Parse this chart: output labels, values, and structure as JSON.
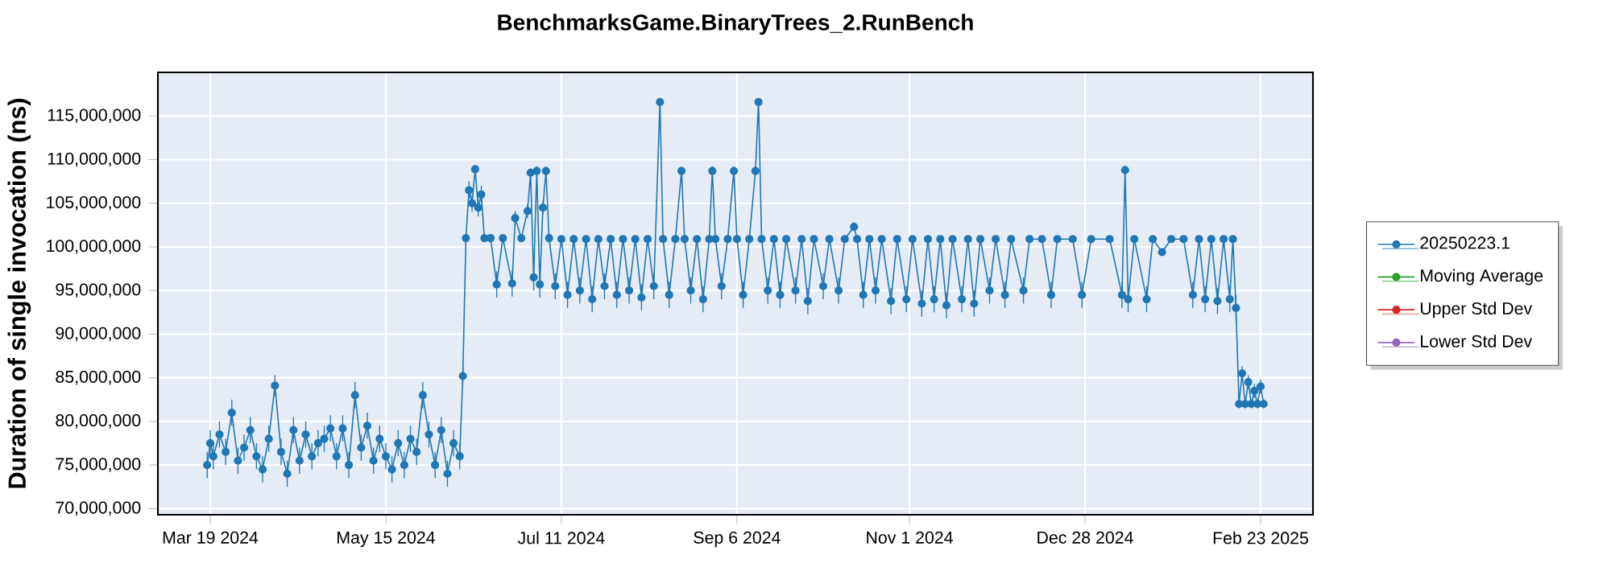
{
  "chart_data": {
    "type": "line",
    "title": "BenchmarksGame.BinaryTrees_2.RunBench",
    "ylabel": "Duration of single invocation (ns)",
    "x": [
      "2024-03-18",
      "2024-03-19",
      "2024-03-20",
      "2024-03-22",
      "2024-03-24",
      "2024-03-26",
      "2024-03-28",
      "2024-03-30",
      "2024-04-01",
      "2024-04-03",
      "2024-04-05",
      "2024-04-07",
      "2024-04-09",
      "2024-04-11",
      "2024-04-13",
      "2024-04-15",
      "2024-04-17",
      "2024-04-19",
      "2024-04-21",
      "2024-04-23",
      "2024-04-25",
      "2024-04-27",
      "2024-04-29",
      "2024-05-01",
      "2024-05-03",
      "2024-05-05",
      "2024-05-07",
      "2024-05-09",
      "2024-05-11",
      "2024-05-13",
      "2024-05-15",
      "2024-05-17",
      "2024-05-19",
      "2024-05-21",
      "2024-05-23",
      "2024-05-25",
      "2024-05-27",
      "2024-05-29",
      "2024-05-31",
      "2024-06-02",
      "2024-06-04",
      "2024-06-06",
      "2024-06-08",
      "2024-06-09",
      "2024-06-10",
      "2024-06-11",
      "2024-06-12",
      "2024-06-13",
      "2024-06-14",
      "2024-06-15",
      "2024-06-16",
      "2024-06-18",
      "2024-06-20",
      "2024-06-22",
      "2024-06-25",
      "2024-06-26",
      "2024-06-28",
      "2024-06-30",
      "2024-07-01",
      "2024-07-02",
      "2024-07-03",
      "2024-07-04",
      "2024-07-05",
      "2024-07-06",
      "2024-07-07",
      "2024-07-09",
      "2024-07-11",
      "2024-07-13",
      "2024-07-15",
      "2024-07-17",
      "2024-07-19",
      "2024-07-21",
      "2024-07-23",
      "2024-07-25",
      "2024-07-27",
      "2024-07-29",
      "2024-07-31",
      "2024-08-02",
      "2024-08-04",
      "2024-08-06",
      "2024-08-08",
      "2024-08-10",
      "2024-08-12",
      "2024-08-13",
      "2024-08-15",
      "2024-08-17",
      "2024-08-19",
      "2024-08-20",
      "2024-08-22",
      "2024-08-24",
      "2024-08-26",
      "2024-08-28",
      "2024-08-29",
      "2024-08-30",
      "2024-09-01",
      "2024-09-03",
      "2024-09-05",
      "2024-09-06",
      "2024-09-08",
      "2024-09-10",
      "2024-09-12",
      "2024-09-13",
      "2024-09-14",
      "2024-09-16",
      "2024-09-18",
      "2024-09-20",
      "2024-09-22",
      "2024-09-25",
      "2024-09-27",
      "2024-09-29",
      "2024-10-01",
      "2024-10-04",
      "2024-10-06",
      "2024-10-09",
      "2024-10-11",
      "2024-10-14",
      "2024-10-15",
      "2024-10-17",
      "2024-10-19",
      "2024-10-21",
      "2024-10-23",
      "2024-10-26",
      "2024-10-28",
      "2024-10-31",
      "2024-11-02",
      "2024-11-05",
      "2024-11-07",
      "2024-11-09",
      "2024-11-11",
      "2024-11-13",
      "2024-11-15",
      "2024-11-18",
      "2024-11-20",
      "2024-11-22",
      "2024-11-24",
      "2024-11-27",
      "2024-11-29",
      "2024-12-02",
      "2024-12-04",
      "2024-12-08",
      "2024-12-10",
      "2024-12-14",
      "2024-12-17",
      "2024-12-19",
      "2024-12-24",
      "2024-12-27",
      "2024-12-30",
      "2025-01-05",
      "2025-01-09",
      "2025-01-10",
      "2025-01-11",
      "2025-01-13",
      "2025-01-17",
      "2025-01-19",
      "2025-01-22",
      "2025-01-25",
      "2025-01-29",
      "2025-02-01",
      "2025-02-03",
      "2025-02-05",
      "2025-02-07",
      "2025-02-09",
      "2025-02-11",
      "2025-02-13",
      "2025-02-14",
      "2025-02-15",
      "2025-02-16",
      "2025-02-17",
      "2025-02-18",
      "2025-02-19",
      "2025-02-20",
      "2025-02-21",
      "2025-02-22",
      "2025-02-23",
      "2025-02-24"
    ],
    "series": [
      {
        "name": "20250223.1",
        "color": "#1f77b4",
        "values": [
          75000000,
          77500000,
          76000000,
          78500000,
          76500000,
          81000000,
          75500000,
          77000000,
          79000000,
          76000000,
          74500000,
          78000000,
          84100000,
          76500000,
          74000000,
          79000000,
          75500000,
          78500000,
          76000000,
          77500000,
          78000000,
          79200000,
          76000000,
          79200000,
          75000000,
          83000000,
          77000000,
          79500000,
          75500000,
          78000000,
          76000000,
          74500000,
          77500000,
          75000000,
          78000000,
          76500000,
          83000000,
          78500000,
          75000000,
          79000000,
          74000000,
          77500000,
          76000000,
          85200000,
          101000000,
          106500000,
          105000000,
          108900000,
          104500000,
          106000000,
          101000000,
          101000000,
          95700000,
          101000000,
          95800000,
          103300000,
          101000000,
          104100000,
          108500000,
          96500000,
          108700000,
          95700000,
          104500000,
          108700000,
          101000000,
          95500000,
          100900000,
          94500000,
          100900000,
          95000000,
          100900000,
          94000000,
          100900000,
          95500000,
          100900000,
          94500000,
          100900000,
          95000000,
          100900000,
          94200000,
          100900000,
          95500000,
          116600000,
          100900000,
          94500000,
          100900000,
          108700000,
          100900000,
          95000000,
          100900000,
          94000000,
          100900000,
          108700000,
          100900000,
          95500000,
          100900000,
          108700000,
          100900000,
          94500000,
          100900000,
          108700000,
          116600000,
          100900000,
          95000000,
          100900000,
          94500000,
          100900000,
          95000000,
          100900000,
          93800000,
          100900000,
          95500000,
          100900000,
          95000000,
          100900000,
          102300000,
          100900000,
          94500000,
          100900000,
          95000000,
          100900000,
          93800000,
          100900000,
          94000000,
          100900000,
          93500000,
          100900000,
          94000000,
          100900000,
          93300000,
          100900000,
          94000000,
          100900000,
          93500000,
          100900000,
          95000000,
          100900000,
          94500000,
          100900000,
          95000000,
          100900000,
          100900000,
          94500000,
          100900000,
          100900000,
          94500000,
          100900000,
          100900000,
          94500000,
          108800000,
          94000000,
          100900000,
          94000000,
          100900000,
          99400000,
          100900000,
          100900000,
          94500000,
          100900000,
          94000000,
          100900000,
          93800000,
          100900000,
          94000000,
          100900000,
          93000000,
          82000000,
          85500000,
          82000000,
          84500000,
          82000000,
          83500000,
          82000000,
          84000000,
          82000000
        ],
        "errors": [
          1500000,
          1500000,
          1500000,
          1500000,
          1500000,
          1500000,
          1500000,
          1500000,
          1500000,
          1500000,
          1500000,
          1500000,
          1200000,
          1500000,
          1500000,
          1500000,
          1500000,
          1500000,
          1500000,
          1500000,
          1500000,
          1500000,
          1500000,
          1500000,
          1500000,
          1500000,
          1500000,
          1500000,
          1500000,
          1500000,
          1500000,
          1500000,
          1500000,
          1500000,
          1500000,
          1500000,
          1500000,
          1500000,
          1500000,
          1500000,
          1500000,
          1500000,
          1500000,
          1000000,
          300000,
          1000000,
          1000000,
          500000,
          1000000,
          1000000,
          300000,
          300000,
          1500000,
          300000,
          1500000,
          800000,
          300000,
          800000,
          500000,
          1500000,
          500000,
          1500000,
          800000,
          500000,
          300000,
          1500000,
          300000,
          1500000,
          300000,
          1500000,
          300000,
          1500000,
          300000,
          1500000,
          300000,
          1500000,
          300000,
          1500000,
          300000,
          1500000,
          300000,
          1500000,
          300000,
          300000,
          1500000,
          300000,
          500000,
          300000,
          1500000,
          300000,
          1500000,
          300000,
          500000,
          300000,
          1500000,
          300000,
          500000,
          300000,
          1500000,
          300000,
          500000,
          300000,
          300000,
          1500000,
          300000,
          1500000,
          300000,
          1500000,
          300000,
          1500000,
          300000,
          1500000,
          300000,
          1500000,
          300000,
          500000,
          300000,
          1500000,
          300000,
          1500000,
          300000,
          1500000,
          300000,
          1500000,
          300000,
          1500000,
          300000,
          1500000,
          300000,
          1500000,
          300000,
          1500000,
          300000,
          1500000,
          300000,
          1500000,
          300000,
          1500000,
          300000,
          1500000,
          300000,
          300000,
          1500000,
          300000,
          300000,
          1500000,
          300000,
          300000,
          1500000,
          500000,
          1500000,
          300000,
          1500000,
          300000,
          400000,
          300000,
          300000,
          1500000,
          300000,
          1500000,
          300000,
          1500000,
          300000,
          1500000,
          300000,
          1500000,
          500000,
          800000,
          500000,
          800000,
          500000,
          800000,
          500000,
          800000,
          500000
        ]
      },
      {
        "name": "Moving Average",
        "color": "#2ca02c",
        "values": [
          null,
          null,
          null,
          null,
          null,
          null,
          null,
          null,
          null,
          null,
          null,
          null,
          null,
          null,
          null,
          null,
          null,
          null,
          null,
          null,
          null,
          null,
          null,
          null,
          null,
          null,
          null,
          null,
          null,
          null,
          null,
          null,
          null,
          null,
          null,
          null,
          null,
          null,
          null,
          null,
          null,
          null,
          null,
          null,
          null,
          null,
          null,
          null,
          null,
          null,
          null,
          null,
          null,
          null,
          null,
          null,
          null,
          null,
          null,
          null,
          null,
          null,
          null,
          null,
          null,
          null,
          null,
          null,
          null,
          null,
          null,
          null,
          null,
          null,
          null,
          null,
          null,
          null,
          null,
          null,
          null,
          null,
          null,
          null,
          null,
          null,
          null,
          null,
          null,
          null,
          null,
          null,
          null,
          null,
          null,
          null,
          null,
          null,
          null,
          null,
          null,
          null,
          null,
          null,
          null,
          null,
          null,
          null,
          null,
          null,
          null,
          null,
          null,
          null,
          null,
          null,
          null,
          null,
          null,
          null,
          null,
          null,
          null,
          null,
          null,
          null,
          null,
          null,
          null,
          null,
          null,
          null,
          null,
          null,
          null,
          null,
          null,
          null,
          null,
          null,
          null,
          null,
          null,
          null,
          null,
          null,
          null,
          null,
          null,
          null,
          null,
          null,
          null,
          null,
          null,
          null,
          null,
          null,
          null,
          null,
          null,
          null,
          null,
          null,
          null,
          null,
          null,
          null,
          null,
          null,
          null,
          null,
          null,
          null,
          null
        ]
      },
      {
        "name": "Upper Std Dev",
        "color": "#d62728",
        "values": [
          null,
          null,
          null,
          null,
          null,
          null,
          null,
          null,
          null,
          null,
          null,
          null,
          null,
          null,
          null,
          null,
          null,
          null,
          null,
          null,
          null,
          null,
          null,
          null,
          null,
          null,
          null,
          null,
          null,
          null,
          null,
          null,
          null,
          null,
          null,
          null,
          null,
          null,
          null,
          null,
          null,
          null,
          null,
          null,
          null,
          null,
          null,
          null,
          null,
          null,
          null,
          null,
          null,
          null,
          null,
          null,
          null,
          null,
          null,
          null,
          null,
          null,
          null,
          null,
          null,
          null,
          null,
          null,
          null,
          null,
          null,
          null,
          null,
          null,
          null,
          null,
          null,
          null,
          null,
          null,
          null,
          null,
          null,
          null,
          null,
          null,
          null,
          null,
          null,
          null,
          null,
          null,
          null,
          null,
          null,
          null,
          null,
          null,
          null,
          null,
          null,
          null,
          null,
          null,
          null,
          null,
          null,
          null,
          null,
          null,
          null,
          null,
          null,
          null,
          null,
          null,
          null,
          null,
          null,
          null,
          null,
          null,
          null,
          null,
          null,
          null,
          null,
          null,
          null,
          null,
          null,
          null,
          null,
          null,
          null,
          null,
          null,
          null,
          null,
          null,
          null,
          null,
          null,
          null,
          null,
          null,
          null,
          null,
          null,
          null,
          null,
          null,
          null,
          null,
          null,
          null,
          null,
          null,
          null,
          null,
          null,
          null,
          null,
          null,
          null,
          null,
          null,
          null,
          null,
          null,
          null,
          null,
          null,
          null,
          null
        ]
      },
      {
        "name": "Lower Std Dev",
        "color": "#9467bd",
        "values": [
          null,
          null,
          null,
          null,
          null,
          null,
          null,
          null,
          null,
          null,
          null,
          null,
          null,
          null,
          null,
          null,
          null,
          null,
          null,
          null,
          null,
          null,
          null,
          null,
          null,
          null,
          null,
          null,
          null,
          null,
          null,
          null,
          null,
          null,
          null,
          null,
          null,
          null,
          null,
          null,
          null,
          null,
          null,
          null,
          null,
          null,
          null,
          null,
          null,
          null,
          null,
          null,
          null,
          null,
          null,
          null,
          null,
          null,
          null,
          null,
          null,
          null,
          null,
          null,
          null,
          null,
          null,
          null,
          null,
          null,
          null,
          null,
          null,
          null,
          null,
          null,
          null,
          null,
          null,
          null,
          null,
          null,
          null,
          null,
          null,
          null,
          null,
          null,
          null,
          null,
          null,
          null,
          null,
          null,
          null,
          null,
          null,
          null,
          null,
          null,
          null,
          null,
          null,
          null,
          null,
          null,
          null,
          null,
          null,
          null,
          null,
          null,
          null,
          null,
          null,
          null,
          null,
          null,
          null,
          null,
          null,
          null,
          null,
          null,
          null,
          null,
          null,
          null,
          null,
          null,
          null,
          null,
          null,
          null,
          null,
          null,
          null,
          null,
          null,
          null,
          null,
          null,
          null,
          null,
          null,
          null,
          null,
          null,
          null,
          null,
          null,
          null,
          null,
          null,
          null,
          null,
          null,
          null,
          null,
          null,
          null,
          null,
          null,
          null,
          null,
          null,
          null,
          null,
          null,
          null,
          null,
          null,
          null,
          null,
          null
        ]
      }
    ],
    "xlim": [
      "2024-03-02",
      "2025-03-12"
    ],
    "xticks": [
      {
        "value": "2024-03-19",
        "label": "Mar 19 2024"
      },
      {
        "value": "2024-05-15",
        "label": "May 15 2024"
      },
      {
        "value": "2024-07-11",
        "label": "Jul 11 2024"
      },
      {
        "value": "2024-09-06",
        "label": "Sep 6 2024"
      },
      {
        "value": "2024-11-01",
        "label": "Nov 1 2024"
      },
      {
        "value": "2024-12-28",
        "label": "Dec 28 2024"
      },
      {
        "value": "2025-02-23",
        "label": "Feb 23 2025"
      }
    ],
    "ylim": [
      69300000,
      120000000
    ],
    "yticks": [
      {
        "value": 70000000,
        "label": "70,000,000"
      },
      {
        "value": 75000000,
        "label": "75,000,000"
      },
      {
        "value": 80000000,
        "label": "80,000,000"
      },
      {
        "value": 85000000,
        "label": "85,000,000"
      },
      {
        "value": 90000000,
        "label": "90,000,000"
      },
      {
        "value": 95000000,
        "label": "95,000,000"
      },
      {
        "value": 100000000,
        "label": "100,000,000"
      },
      {
        "value": 105000000,
        "label": "105,000,000"
      },
      {
        "value": 110000000,
        "label": "110,000,000"
      },
      {
        "value": 115000000,
        "label": "115,000,000"
      }
    ],
    "grid": true,
    "legend": "right",
    "marker": "circle",
    "line_style": "solid"
  }
}
